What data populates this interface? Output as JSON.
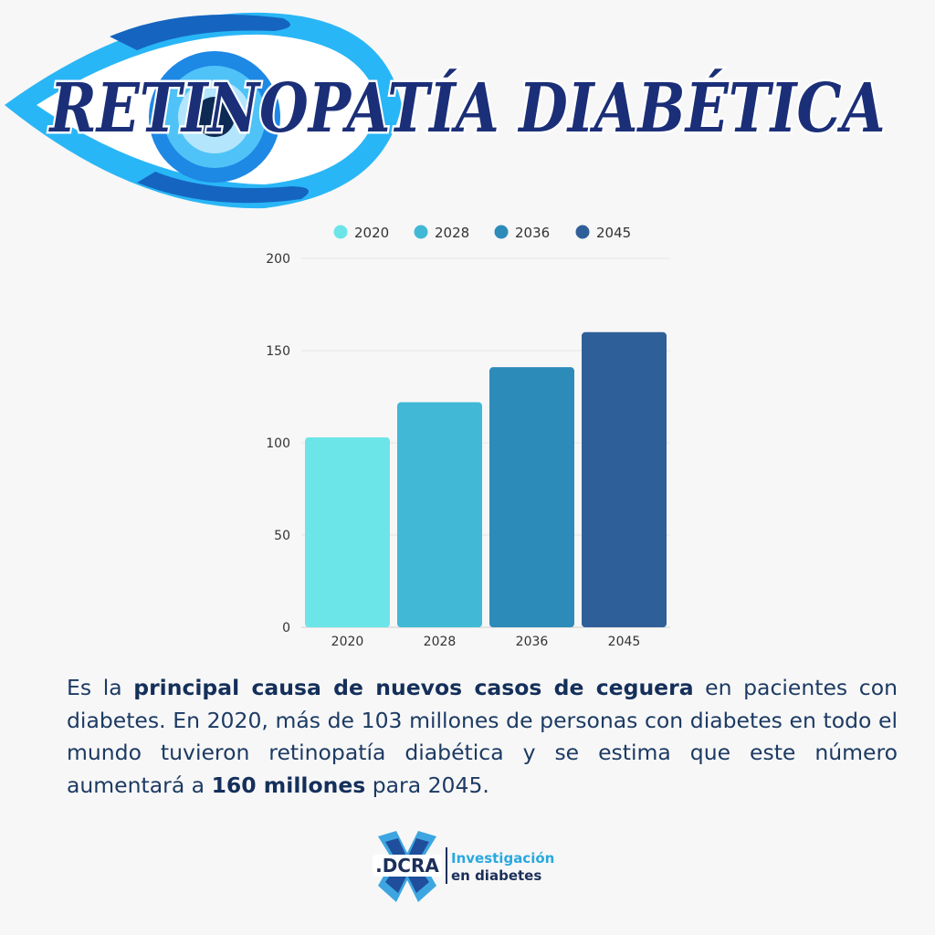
{
  "header": {
    "title": "RETINOPATÍA  DIABÉTICA",
    "colors": {
      "eye_light": "#29b6f6",
      "eye_dark": "#1565c0",
      "title_fill": "#1b2f78"
    }
  },
  "chart_data": {
    "type": "bar",
    "categories": [
      "2020",
      "2028",
      "2036",
      "2045"
    ],
    "values": [
      103,
      122,
      141,
      160
    ],
    "ylim": [
      0,
      200
    ],
    "yticks": [
      0,
      50,
      100,
      150,
      200
    ],
    "grid": true,
    "legend": {
      "placement": "top-center",
      "items": [
        {
          "label": "2020",
          "color": "#6ce5e8"
        },
        {
          "label": "2028",
          "color": "#41b8d5"
        },
        {
          "label": "2036",
          "color": "#2d8bba"
        },
        {
          "label": "2045",
          "color": "#2f5f98"
        }
      ]
    }
  },
  "text": {
    "p1": "Es la ",
    "p1_bold": "principal causa de nuevos casos de ceguera",
    "p2": " en pacientes con diabetes. En 2020, más de 103 millones de personas con diabetes en todo el mundo tuvieron retinopatía diabética y se estima que este número aumentará a ",
    "p2_bold": "160 millones",
    "p3": " para 2045."
  },
  "footer": {
    "logo_mark": ".DCRA",
    "line1": "Investigación",
    "line2": "en diabetes",
    "colors": {
      "line1": "#2aa8e0",
      "line2": "#1b2f5a"
    }
  }
}
